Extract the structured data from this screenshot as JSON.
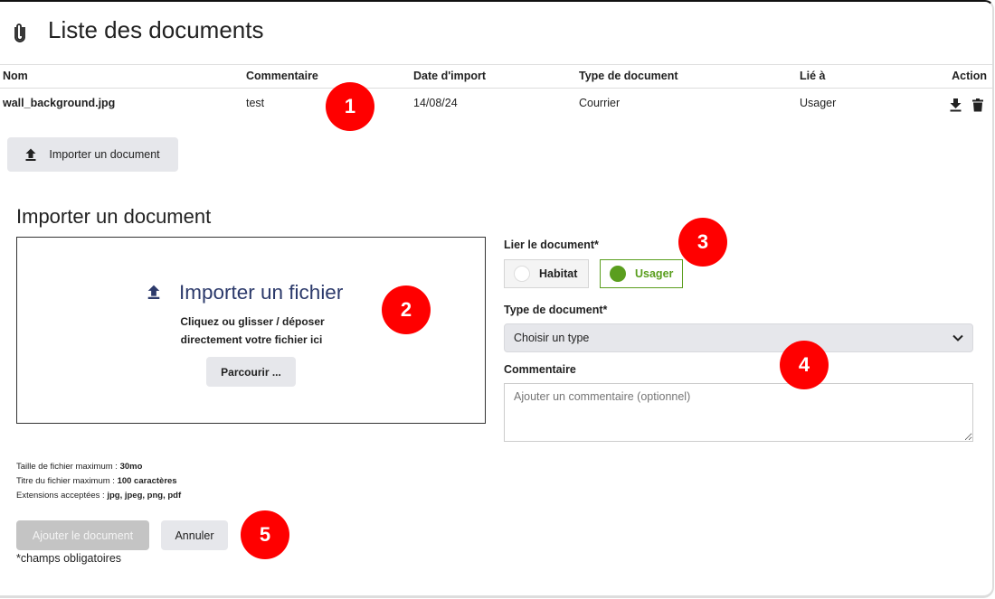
{
  "header": {
    "icon": "paperclip-icon",
    "title": "Liste des documents"
  },
  "table": {
    "columns": [
      "Nom",
      "Commentaire",
      "Date d'import",
      "Type de document",
      "Lié à",
      "Action"
    ],
    "rows": [
      {
        "nom": "wall_background.jpg",
        "commentaire": "test",
        "date": "14/08/24",
        "type": "Courrier",
        "lie": "Usager",
        "actions": [
          "download-icon",
          "trash-icon"
        ]
      }
    ]
  },
  "import_button": {
    "icon": "upload-icon",
    "label": "Importer un document"
  },
  "form": {
    "title": "Importer un document",
    "dropzone": {
      "title": "Importer un fichier",
      "line1": "Cliquez ou glisser / déposer",
      "line2": "directement votre fichier ici",
      "browse": "Parcourir ..."
    },
    "link": {
      "label": "Lier le document*",
      "options": [
        "Habitat",
        "Usager"
      ],
      "selected": "Usager",
      "accent": "#5a9e1e"
    },
    "type": {
      "label": "Type de document*",
      "value": "Choisir un type"
    },
    "comment": {
      "label": "Commentaire",
      "placeholder": "Ajouter un commentaire (optionnel)"
    },
    "info": [
      {
        "label": "Taille de fichier maximum : ",
        "value": "30mo"
      },
      {
        "label": "Titre du fichier maximum : ",
        "value": "100 caractères"
      },
      {
        "label": "Extensions acceptées : ",
        "value": "jpg, jpeg, png, pdf"
      }
    ],
    "submit": "Ajouter le document",
    "cancel": "Annuler",
    "required_note": "*champs obligatoires"
  },
  "annotations": [
    "1",
    "2",
    "3",
    "4",
    "5"
  ]
}
